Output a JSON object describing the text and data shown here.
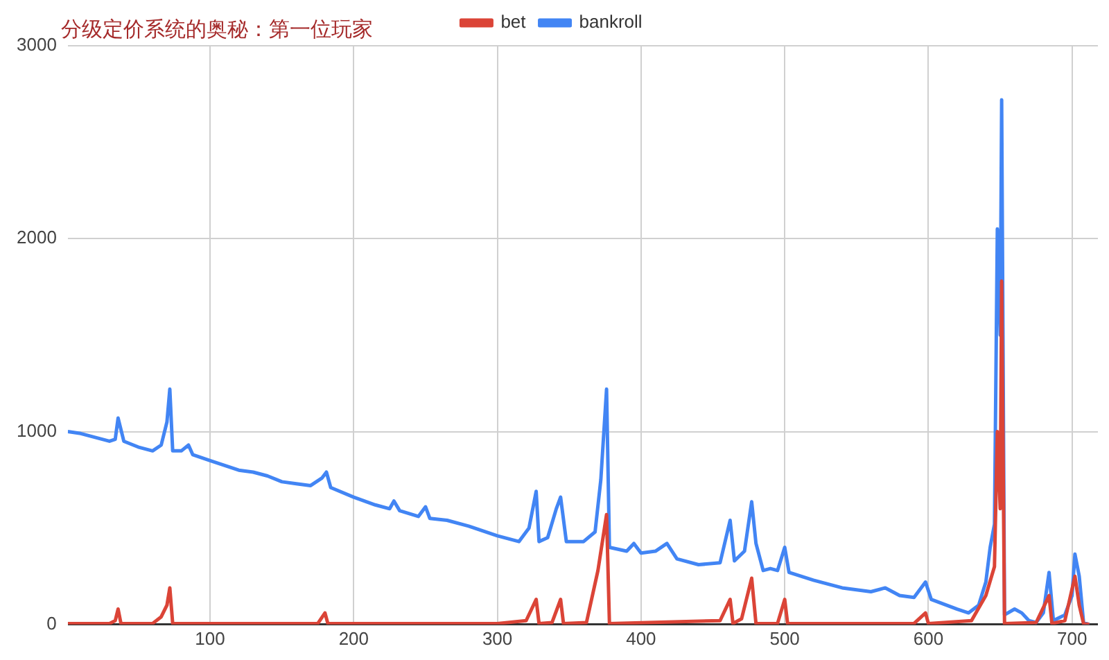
{
  "chart_data": {
    "type": "line",
    "title": "分级定价系统的奥秘：第一位玩家",
    "xlim": [
      1,
      718
    ],
    "xticks": [
      100,
      200,
      300,
      400,
      500,
      600,
      700
    ],
    "ylim": [
      0,
      3000
    ],
    "yticks": [
      0,
      1000,
      2000,
      3000
    ],
    "grid": true,
    "legend": "top",
    "marker": "none",
    "series": [
      {
        "name": "bankroll",
        "color": "#4285f4",
        "x": [
          1,
          10,
          20,
          30,
          34,
          36,
          40,
          50,
          60,
          66,
          70,
          72,
          74,
          80,
          85,
          88,
          100,
          120,
          130,
          140,
          150,
          160,
          170,
          178,
          181,
          184,
          200,
          215,
          225,
          228,
          232,
          245,
          250,
          253,
          265,
          280,
          300,
          315,
          322,
          327,
          329,
          335,
          341,
          344,
          348,
          360,
          368,
          372,
          376,
          378,
          390,
          395,
          400,
          410,
          418,
          425,
          440,
          455,
          462,
          465,
          472,
          477,
          480,
          485,
          490,
          495,
          500,
          503,
          520,
          540,
          560,
          570,
          580,
          590,
          598,
          602,
          620,
          628,
          635,
          640,
          643,
          646,
          648,
          650,
          651,
          653,
          660,
          665,
          670,
          675,
          680,
          684,
          687,
          695,
          700,
          702,
          705,
          708,
          712
        ],
        "values": [
          1000,
          990,
          970,
          950,
          960,
          1070,
          950,
          920,
          900,
          930,
          1050,
          1220,
          900,
          900,
          930,
          880,
          850,
          800,
          790,
          770,
          740,
          730,
          720,
          760,
          790,
          710,
          660,
          620,
          600,
          640,
          590,
          560,
          610,
          550,
          540,
          510,
          460,
          430,
          500,
          690,
          430,
          450,
          600,
          660,
          430,
          430,
          480,
          750,
          1220,
          400,
          380,
          420,
          370,
          380,
          420,
          340,
          310,
          320,
          540,
          330,
          380,
          636,
          420,
          280,
          290,
          280,
          400,
          270,
          230,
          190,
          170,
          190,
          150,
          140,
          220,
          130,
          80,
          60,
          100,
          220,
          400,
          520,
          2050,
          1500,
          2720,
          50,
          80,
          60,
          20,
          10,
          60,
          270,
          20,
          50,
          150,
          365,
          250,
          10,
          0
        ]
      },
      {
        "name": "bet",
        "color": "#db4437",
        "x": [
          1,
          30,
          34,
          36,
          38,
          60,
          66,
          70,
          72,
          74,
          100,
          175,
          180,
          182,
          300,
          320,
          327,
          329,
          338,
          344,
          346,
          362,
          370,
          376,
          378,
          455,
          462,
          464,
          470,
          477,
          480,
          495,
          500,
          502,
          590,
          598,
          600,
          630,
          640,
          646,
          648,
          650,
          651,
          653,
          675,
          684,
          686,
          695,
          702,
          705,
          708,
          712
        ],
        "values": [
          5,
          5,
          20,
          80,
          5,
          5,
          40,
          100,
          190,
          5,
          5,
          5,
          60,
          5,
          5,
          20,
          130,
          5,
          10,
          130,
          5,
          10,
          280,
          570,
          5,
          20,
          130,
          5,
          30,
          240,
          5,
          5,
          130,
          5,
          5,
          60,
          5,
          20,
          150,
          300,
          1000,
          600,
          1780,
          5,
          10,
          150,
          5,
          20,
          250,
          100,
          5,
          0
        ]
      }
    ]
  }
}
